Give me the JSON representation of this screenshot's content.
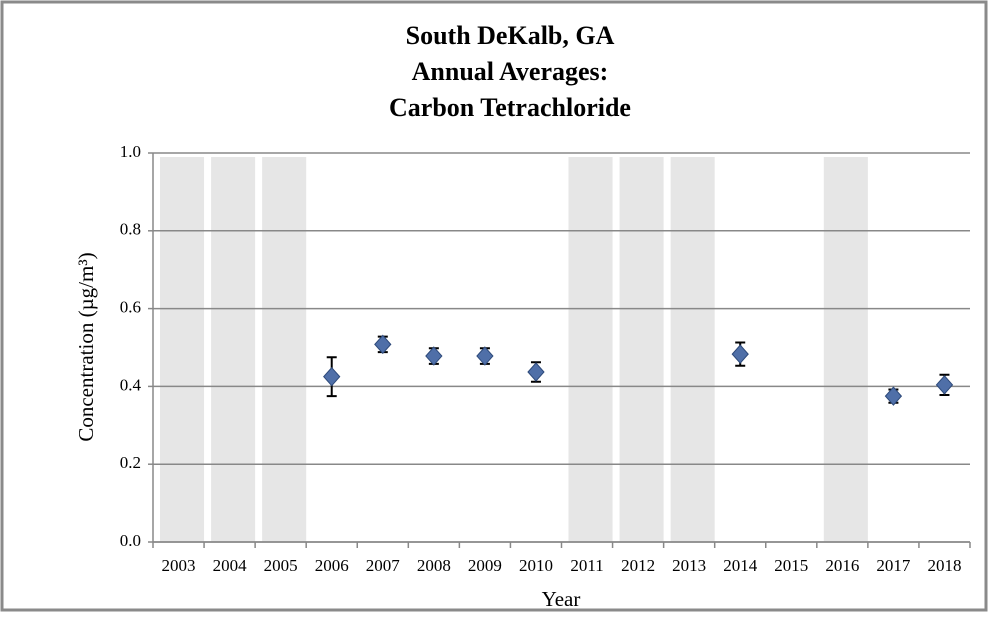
{
  "chart_data": {
    "type": "scatter",
    "title": [
      "South DeKalb, GA",
      "Annual Averages:",
      "Carbon Tetrachloride"
    ],
    "xlabel": "Year",
    "ylabel": "Concentration (µg/m³)",
    "categories": [
      "2003",
      "2004",
      "2005",
      "2006",
      "2007",
      "2008",
      "2009",
      "2010",
      "2011",
      "2012",
      "2013",
      "2014",
      "2015",
      "2016",
      "2017",
      "2018"
    ],
    "values": [
      null,
      null,
      null,
      0.425,
      0.508,
      0.478,
      0.478,
      0.437,
      null,
      null,
      null,
      0.483,
      null,
      null,
      0.375,
      0.404
    ],
    "errors": [
      null,
      null,
      null,
      0.05,
      0.02,
      0.02,
      0.02,
      0.025,
      null,
      null,
      null,
      0.03,
      null,
      null,
      0.017,
      0.026
    ],
    "shaded": [
      true,
      true,
      true,
      false,
      false,
      false,
      false,
      false,
      true,
      true,
      true,
      false,
      false,
      true,
      false,
      false
    ],
    "color": "#4f6fa8",
    "ylim": [
      0,
      1
    ],
    "yticks": [
      {
        "value": 0,
        "label": "0.0"
      },
      0.2,
      0.4,
      0.6,
      0.8,
      {
        "value": 1,
        "label": "1.0"
      }
    ],
    "grid": true
  }
}
